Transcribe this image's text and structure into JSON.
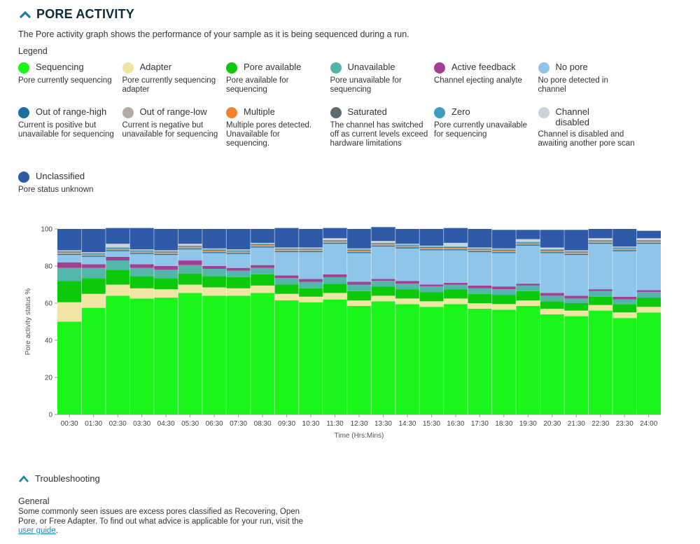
{
  "header": {
    "title": "PORE ACTIVITY"
  },
  "intro": "The Pore activity graph shows the performance of your sample as it is being sequenced during a run.",
  "legend_title": "Legend",
  "legend": [
    {
      "name": "Sequencing",
      "desc": "Pore currently sequencing",
      "color": "#1af51a"
    },
    {
      "name": "Adapter",
      "desc": "Pore currently sequencing adapter",
      "color": "#efe6a4"
    },
    {
      "name": "Pore available",
      "desc": "Pore available for sequencing",
      "color": "#0cc90c"
    },
    {
      "name": "Unavailable",
      "desc": "Pore unavailable for sequencing",
      "color": "#52b7a9"
    },
    {
      "name": "Active feedback",
      "desc": "Channel ejecting analyte",
      "color": "#a23f94"
    },
    {
      "name": "No pore",
      "desc": "No pore detected in channel",
      "color": "#8fc5e8"
    },
    {
      "name": "Out of range-high",
      "desc": "Current is positive but unavailable for sequencing",
      "color": "#1a6f9c"
    },
    {
      "name": "Out of range-low",
      "desc": "Current is negative but unavailable for sequencing",
      "color": "#b2aba5"
    },
    {
      "name": "Multiple",
      "desc": "Multiple pores detected. Unavailable for sequencing.",
      "color": "#f0832a"
    },
    {
      "name": "Saturated",
      "desc": "The channel has switched off as current levels exceed hardware limitations",
      "color": "#5e6a72"
    },
    {
      "name": "Zero",
      "desc": "Pore currently unavailable for sequencing",
      "color": "#3e9cc0"
    },
    {
      "name": "Channel disabled",
      "desc": "Channel is disabled and awaiting another pore scan",
      "color": "#c9d4da"
    },
    {
      "name": "Unclassified",
      "desc": "Pore status unknown",
      "color": "#2f5aa8"
    }
  ],
  "chart_data": {
    "type": "bar",
    "stacked": true,
    "xlabel": "Time (Hrs:Mins)",
    "ylabel": "Pore activity status %",
    "ylim": [
      0,
      100
    ],
    "yticks": [
      0,
      20,
      40,
      60,
      80,
      100
    ],
    "grid": false,
    "categories": [
      "00:30",
      "01:30",
      "02:30",
      "03:30",
      "04:30",
      "05:30",
      "06:30",
      "07:30",
      "08:30",
      "09:30",
      "10:30",
      "11:30",
      "12:30",
      "13:30",
      "14:30",
      "15:30",
      "16:30",
      "17:30",
      "18:30",
      "19:30",
      "20:30",
      "21:30",
      "22:30",
      "23:30",
      "24:00"
    ],
    "series": [
      {
        "name": "Sequencing",
        "color": "#1af51a",
        "values": [
          50,
          57.5,
          64,
          62.5,
          63,
          65.5,
          64,
          64,
          65.5,
          61.5,
          60.5,
          62,
          58.5,
          61,
          59.5,
          58,
          59.5,
          57,
          56.5,
          58.5,
          54,
          53,
          56,
          52,
          55
        ]
      },
      {
        "name": "Adapter",
        "color": "#efe6a4",
        "values": [
          10.5,
          7.5,
          6,
          5.5,
          4.5,
          4.5,
          4.5,
          4,
          4,
          3.5,
          3,
          3.5,
          3,
          3,
          3,
          3,
          3,
          3,
          3,
          3,
          3,
          3,
          3,
          3,
          3
        ]
      },
      {
        "name": "Pore available",
        "color": "#0cc90c",
        "values": [
          11.5,
          8.5,
          8,
          6.5,
          6,
          6,
          6,
          6,
          6,
          5,
          4.5,
          5,
          5,
          5,
          5,
          5,
          5,
          5,
          5,
          5,
          4,
          4,
          4.5,
          4.5,
          5
        ]
      },
      {
        "name": "Unavailable",
        "color": "#52b7a9",
        "values": [
          7,
          5.5,
          5,
          4.5,
          4.5,
          4.5,
          4,
          3.5,
          3.5,
          3.5,
          3.5,
          3.5,
          3.5,
          3,
          3,
          3,
          2.5,
          3,
          3,
          3,
          3,
          2.5,
          3,
          2.5,
          3
        ]
      },
      {
        "name": "Active feedback",
        "color": "#a23f94",
        "values": [
          3,
          2,
          2,
          2,
          2,
          2.5,
          1.5,
          1.5,
          1.5,
          1.5,
          1.5,
          1.5,
          1.5,
          1,
          1.5,
          1,
          1,
          1.5,
          1.5,
          1,
          1.5,
          1.5,
          1,
          1.5,
          1
        ]
      },
      {
        "name": "No pore",
        "color": "#8fc5e8",
        "values": [
          4,
          4,
          3,
          5.5,
          6,
          6,
          7,
          7.5,
          9.5,
          12.5,
          14.5,
          16.5,
          15.5,
          17.5,
          17.5,
          18.5,
          17.5,
          18,
          18,
          20.5,
          21.5,
          22,
          24.5,
          24.5,
          25
        ]
      },
      {
        "name": "Out of range-high",
        "color": "#1a6f9c",
        "values": [
          0.5,
          0.5,
          0.5,
          0.5,
          0.5,
          0.5,
          0.5,
          0.5,
          0.5,
          0.5,
          0.5,
          0.5,
          0.5,
          0.5,
          0.5,
          0.5,
          0.5,
          0.5,
          0.5,
          0.5,
          0.5,
          0.5,
          0.5,
          0.5,
          0.5
        ]
      },
      {
        "name": "Out of range-low",
        "color": "#b2aba5",
        "values": [
          0.5,
          0.5,
          0.5,
          0.5,
          0.5,
          0.5,
          0.5,
          0.5,
          0.5,
          0.5,
          0.5,
          0.5,
          0.5,
          0.5,
          0.5,
          0.5,
          0.5,
          0.5,
          0.5,
          0.5,
          0.5,
          0.5,
          0.5,
          0.5,
          0.5
        ]
      },
      {
        "name": "Multiple",
        "color": "#f0832a",
        "values": [
          0.3,
          0.3,
          0.3,
          0.3,
          0.3,
          0.3,
          0.3,
          0.3,
          0.3,
          0.3,
          0.3,
          0.3,
          0.3,
          0.3,
          0.3,
          0.3,
          0.3,
          0.3,
          0.3,
          0.3,
          0.3,
          0.3,
          0.3,
          0.3,
          0.3
        ]
      },
      {
        "name": "Saturated",
        "color": "#5e6a72",
        "values": [
          0.2,
          0.2,
          0.2,
          0.2,
          0.2,
          0.2,
          0.2,
          0.2,
          0.2,
          0.2,
          0.2,
          0.2,
          0.2,
          0.2,
          0.2,
          0.2,
          0.2,
          0.2,
          0.2,
          0.2,
          0.2,
          0.2,
          0.2,
          0.2,
          0.2
        ]
      },
      {
        "name": "Zero",
        "color": "#3e9cc0",
        "values": [
          0.5,
          0.5,
          0.5,
          0.5,
          0.5,
          0.5,
          0.5,
          0.5,
          0.5,
          0.5,
          0.5,
          0.5,
          0.5,
          0.5,
          0.5,
          0.5,
          0.5,
          0.5,
          0.5,
          0.5,
          0.5,
          0.5,
          0.5,
          0.5,
          0.5
        ]
      },
      {
        "name": "Channel disabled",
        "color": "#c9d4da",
        "values": [
          0.5,
          0.5,
          2,
          0.5,
          0.5,
          1,
          0.5,
          0.5,
          0.5,
          0.5,
          0.5,
          1,
          0.5,
          1,
          0.5,
          0.5,
          2,
          0.5,
          0.5,
          1.5,
          1,
          0.5,
          1,
          0.5,
          1
        ]
      },
      {
        "name": "Unclassified",
        "color": "#2f5aa8",
        "values": [
          11.5,
          12.5,
          8.5,
          11.5,
          11.5,
          8,
          10.5,
          11,
          7.5,
          10.5,
          10,
          5.5,
          10.5,
          7.5,
          8,
          9,
          8,
          10,
          10,
          5,
          9.5,
          11,
          5,
          9.5,
          4
        ]
      }
    ]
  },
  "troubleshooting": {
    "title": "Troubleshooting",
    "general_title": "General",
    "text": "Some commonly seen issues are excess pores classified as Recovering, Open Pore, or Free Adapter. To find out what advice is applicable for your run, visit the ",
    "link_text": "user guide",
    "text_after": "."
  }
}
